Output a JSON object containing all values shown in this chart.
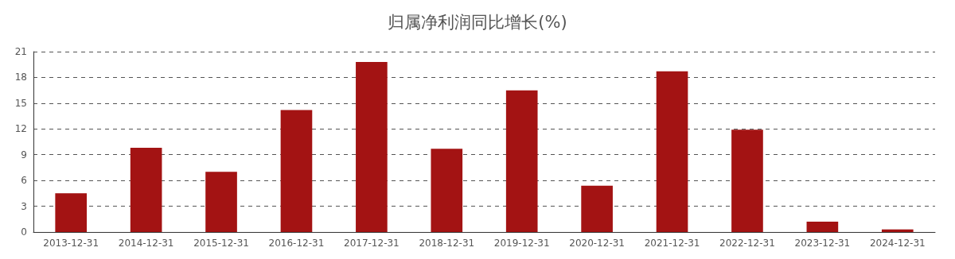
{
  "chart_data": {
    "type": "bar",
    "title": "归属净利润同比增长(%)",
    "categories": [
      "2013-12-31",
      "2014-12-31",
      "2015-12-31",
      "2016-12-31",
      "2017-12-31",
      "2018-12-31",
      "2019-12-31",
      "2020-12-31",
      "2021-12-31",
      "2022-12-31",
      "2023-12-31",
      "2024-12-31"
    ],
    "values": [
      4.5,
      9.8,
      7.0,
      14.2,
      19.8,
      9.7,
      16.5,
      5.4,
      18.7,
      11.9,
      1.2,
      0.3
    ],
    "color": "#a31313",
    "ylim": [
      0,
      21
    ],
    "yticks": [
      0,
      3,
      6,
      9,
      12,
      15,
      18,
      21
    ],
    "grid": "y"
  }
}
